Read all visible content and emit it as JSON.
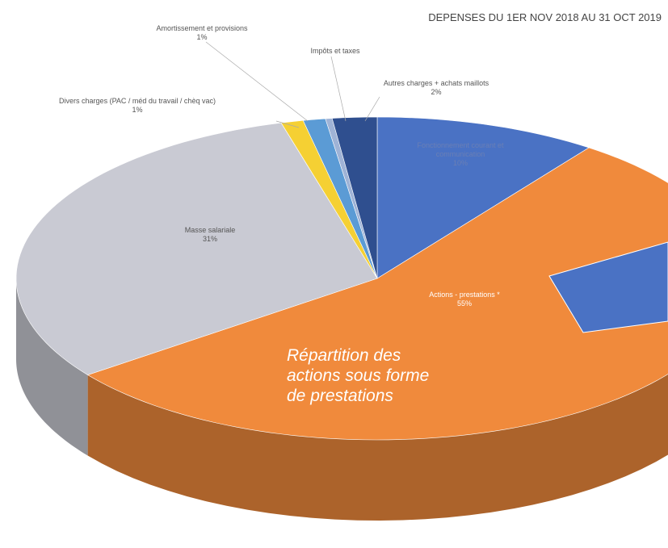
{
  "chart_data": {
    "type": "pie",
    "title": "DEPENSES DU 1ER NOV 2018 AU 31 OCT 2019",
    "categories": [
      "Fonctionnement courant et communication",
      "Actions - prestations *",
      "Masse salariale",
      "Divers charges (PAC / méd du travail / chèq vac)",
      "Amortissement et provisions",
      "Impôts et taxes",
      "Autres charges + achats maillots"
    ],
    "values": [
      10,
      55,
      31,
      1,
      1,
      0.3,
      2
    ],
    "value_labels": [
      "10%",
      "55%",
      "31%",
      "1%",
      "1%",
      null,
      "2%"
    ],
    "colors": [
      "#4a72c4",
      "#f08a3c",
      "#c9cad3",
      "#f5d033",
      "#5b9bd5",
      "#9fb3d6",
      "#2f4f8f"
    ],
    "annotation": "Répartition des actions sous forme de prestations"
  }
}
